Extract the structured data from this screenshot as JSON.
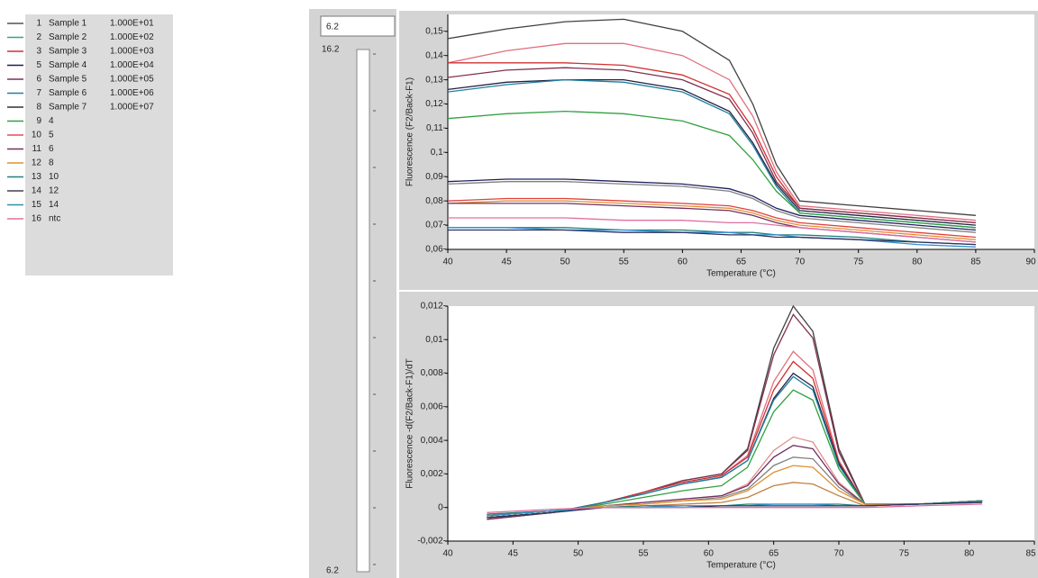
{
  "legend": [
    {
      "num": "1",
      "name": "Sample 1",
      "conc": "1.000E+01",
      "color": "#505050"
    },
    {
      "num": "2",
      "name": "Sample 2",
      "conc": "1.000E+02",
      "color": "#2aa88a"
    },
    {
      "num": "3",
      "name": "Sample 3",
      "conc": "1.000E+03",
      "color": "#d03030"
    },
    {
      "num": "5",
      "name": "Sample 4",
      "conc": "1.000E+04",
      "color": "#202040"
    },
    {
      "num": "6",
      "name": "Sample 5",
      "conc": "1.000E+05",
      "color": "#803050"
    },
    {
      "num": "7",
      "name": "Sample 6",
      "conc": "1.000E+06",
      "color": "#2080a0"
    },
    {
      "num": "8",
      "name": "Sample 7",
      "conc": "1.000E+07",
      "color": "#303030"
    },
    {
      "num": "9",
      "name": "4",
      "conc": "",
      "color": "#30a040"
    },
    {
      "num": "10",
      "name": "5",
      "conc": "",
      "color": "#e05050"
    },
    {
      "num": "11",
      "name": "6",
      "conc": "",
      "color": "#703060"
    },
    {
      "num": "12",
      "name": "8",
      "conc": "",
      "color": "#e09030"
    },
    {
      "num": "13",
      "name": "10",
      "conc": "",
      "color": "#208080"
    },
    {
      "num": "14",
      "name": "12",
      "conc": "",
      "color": "#404050"
    },
    {
      "num": "15",
      "name": "14",
      "conc": "",
      "color": "#3090b0"
    },
    {
      "num": "16",
      "name": "ntc",
      "conc": "",
      "color": "#e070a0"
    }
  ],
  "slider": {
    "input": "6.2",
    "max": "16.2",
    "min": "6.2"
  },
  "chart_data": [
    {
      "type": "line",
      "xlabel": "Temperature (°C)",
      "ylabel": "Fluorescence (F2/Back-F1)",
      "x": [
        40,
        45,
        50,
        55,
        60,
        64,
        66,
        68,
        70,
        75,
        80,
        85
      ],
      "xlim": [
        40,
        90
      ],
      "xticks": [
        40,
        45,
        50,
        55,
        60,
        65,
        70,
        75,
        80,
        85,
        90
      ],
      "ylim": [
        0.06,
        0.157
      ],
      "yticks": [
        {
          "value": 0.06,
          "label": "0,06-"
        },
        {
          "value": 0.07,
          "label": "0,07-"
        },
        {
          "value": 0.08,
          "label": "0,08-"
        },
        {
          "value": 0.09,
          "label": "0,09-"
        },
        {
          "value": 0.1,
          "label": "0,1-"
        },
        {
          "value": 0.11,
          "label": "0,11-"
        },
        {
          "value": 0.12,
          "label": "0,12-"
        },
        {
          "value": 0.13,
          "label": "0,13-"
        },
        {
          "value": 0.14,
          "label": "0,14-"
        },
        {
          "value": 0.15,
          "label": "0,15-"
        }
      ],
      "series": [
        {
          "color": "#404040",
          "values": [
            0.147,
            0.151,
            0.154,
            0.155,
            0.15,
            0.138,
            0.12,
            0.095,
            0.08,
            0.078,
            0.076,
            0.074
          ]
        },
        {
          "color": "#e07080",
          "values": [
            0.137,
            0.142,
            0.145,
            0.145,
            0.14,
            0.13,
            0.115,
            0.092,
            0.078,
            0.076,
            0.074,
            0.072
          ]
        },
        {
          "color": "#d03030",
          "values": [
            0.137,
            0.137,
            0.137,
            0.136,
            0.132,
            0.124,
            0.11,
            0.09,
            0.077,
            0.075,
            0.073,
            0.071
          ]
        },
        {
          "color": "#803050",
          "values": [
            0.131,
            0.134,
            0.135,
            0.134,
            0.13,
            0.122,
            0.108,
            0.088,
            0.077,
            0.075,
            0.073,
            0.071
          ]
        },
        {
          "color": "#202040",
          "values": [
            0.126,
            0.129,
            0.13,
            0.13,
            0.126,
            0.117,
            0.104,
            0.087,
            0.076,
            0.074,
            0.072,
            0.07
          ]
        },
        {
          "color": "#2080a0",
          "values": [
            0.125,
            0.128,
            0.13,
            0.129,
            0.125,
            0.116,
            0.103,
            0.086,
            0.075,
            0.073,
            0.071,
            0.069
          ]
        },
        {
          "color": "#30a040",
          "values": [
            0.114,
            0.116,
            0.117,
            0.116,
            0.113,
            0.107,
            0.097,
            0.084,
            0.075,
            0.073,
            0.071,
            0.069
          ]
        },
        {
          "color": "#202060",
          "values": [
            0.088,
            0.089,
            0.089,
            0.088,
            0.087,
            0.085,
            0.082,
            0.077,
            0.074,
            0.072,
            0.07,
            0.068
          ]
        },
        {
          "color": "#808080",
          "values": [
            0.087,
            0.088,
            0.088,
            0.087,
            0.086,
            0.084,
            0.081,
            0.076,
            0.073,
            0.071,
            0.069,
            0.067
          ]
        },
        {
          "color": "#e04040",
          "values": [
            0.08,
            0.081,
            0.081,
            0.08,
            0.079,
            0.078,
            0.076,
            0.073,
            0.071,
            0.069,
            0.067,
            0.065
          ]
        },
        {
          "color": "#e09030",
          "values": [
            0.079,
            0.08,
            0.08,
            0.079,
            0.078,
            0.077,
            0.075,
            0.072,
            0.07,
            0.068,
            0.066,
            0.064
          ]
        },
        {
          "color": "#703060",
          "values": [
            0.079,
            0.079,
            0.079,
            0.078,
            0.077,
            0.076,
            0.074,
            0.071,
            0.069,
            0.067,
            0.065,
            0.063
          ]
        },
        {
          "color": "#e070a0",
          "values": [
            0.073,
            0.073,
            0.073,
            0.072,
            0.072,
            0.071,
            0.071,
            0.07,
            0.069,
            0.067,
            0.065,
            0.063
          ]
        },
        {
          "color": "#208080",
          "values": [
            0.069,
            0.069,
            0.069,
            0.068,
            0.068,
            0.067,
            0.067,
            0.066,
            0.066,
            0.065,
            0.063,
            0.062
          ]
        },
        {
          "color": "#3090d0",
          "values": [
            0.069,
            0.069,
            0.068,
            0.068,
            0.067,
            0.067,
            0.066,
            0.066,
            0.065,
            0.064,
            0.062,
            0.061
          ]
        },
        {
          "color": "#303060",
          "values": [
            0.068,
            0.068,
            0.068,
            0.067,
            0.067,
            0.066,
            0.066,
            0.065,
            0.065,
            0.064,
            0.063,
            0.062
          ]
        }
      ]
    },
    {
      "type": "line",
      "xlabel": "Temperature (°C)",
      "ylabel": "Fluorescence -d(F2/Back-F1)/dT",
      "x": [
        43,
        48,
        52,
        55,
        58,
        61,
        63,
        65,
        66.5,
        68,
        70,
        72,
        76,
        81
      ],
      "xlim": [
        40,
        85
      ],
      "xticks": [
        40,
        45,
        50,
        55,
        60,
        65,
        70,
        75,
        80,
        85
      ],
      "ylim": [
        -0.002,
        0.012
      ],
      "yticks": [
        {
          "value": -0.002,
          "label": "-0,002-"
        },
        {
          "value": 0,
          "label": "0-"
        },
        {
          "value": 0.002,
          "label": "0,002-"
        },
        {
          "value": 0.004,
          "label": "0,004-"
        },
        {
          "value": 0.006,
          "label": "0,006-"
        },
        {
          "value": 0.008,
          "label": "0,008-"
        },
        {
          "value": 0.01,
          "label": "0,01-"
        },
        {
          "value": 0.012,
          "label": "0,012-"
        }
      ],
      "series": [
        {
          "color": "#404040",
          "values": [
            -0.0007,
            -0.0003,
            0.0003,
            0.0009,
            0.0016,
            0.002,
            0.0035,
            0.0095,
            0.012,
            0.0105,
            0.0035,
            0.0002,
            0.0002,
            0.0004
          ]
        },
        {
          "color": "#803050",
          "values": [
            -0.0007,
            -0.0003,
            0.0003,
            0.0009,
            0.0016,
            0.002,
            0.0034,
            0.0091,
            0.0115,
            0.0101,
            0.0033,
            0.0002,
            0.0002,
            0.0004
          ]
        },
        {
          "color": "#e07080",
          "values": [
            -0.0006,
            -0.0003,
            0.0003,
            0.0009,
            0.0015,
            0.0019,
            0.0031,
            0.0075,
            0.0093,
            0.0082,
            0.0028,
            0.0002,
            0.0002,
            0.0004
          ]
        },
        {
          "color": "#d03030",
          "values": [
            -0.0006,
            -0.0003,
            0.0003,
            0.0009,
            0.0015,
            0.0019,
            0.003,
            0.007,
            0.0087,
            0.0077,
            0.0027,
            0.0002,
            0.0002,
            0.0004
          ]
        },
        {
          "color": "#202040",
          "values": [
            -0.0006,
            -0.0003,
            0.0003,
            0.0008,
            0.0014,
            0.0018,
            0.0028,
            0.0065,
            0.008,
            0.0072,
            0.0026,
            0.0002,
            0.0002,
            0.0004
          ]
        },
        {
          "color": "#2080a0",
          "values": [
            -0.0006,
            -0.0003,
            0.0003,
            0.0008,
            0.0014,
            0.0018,
            0.0028,
            0.0064,
            0.0078,
            0.007,
            0.0025,
            0.0002,
            0.0002,
            0.0004
          ]
        },
        {
          "color": "#30a040",
          "values": [
            -0.0006,
            -0.0003,
            0.0002,
            0.0006,
            0.001,
            0.0013,
            0.0024,
            0.0057,
            0.007,
            0.0064,
            0.0023,
            0.0002,
            0.0002,
            0.0004
          ]
        },
        {
          "color": "#e09090",
          "values": [
            -0.0005,
            -0.0002,
            0.0001,
            0.0003,
            0.0005,
            0.0007,
            0.0014,
            0.0034,
            0.0042,
            0.0039,
            0.0015,
            0.0002,
            0.0002,
            0.0004
          ]
        },
        {
          "color": "#703060",
          "values": [
            -0.0005,
            -0.0002,
            0.0001,
            0.0003,
            0.0005,
            0.0007,
            0.0013,
            0.003,
            0.0037,
            0.0035,
            0.0014,
            0.0002,
            0.0002,
            0.0004
          ]
        },
        {
          "color": "#808080",
          "values": [
            -0.0005,
            -0.0002,
            0.0001,
            0.0002,
            0.0004,
            0.0006,
            0.0011,
            0.0025,
            0.003,
            0.0029,
            0.0012,
            0.0002,
            0.0002,
            0.0004
          ]
        },
        {
          "color": "#e09030",
          "values": [
            -0.0005,
            -0.0002,
            0.0001,
            0.0002,
            0.0004,
            0.0005,
            0.001,
            0.0021,
            0.0025,
            0.0024,
            0.001,
            0.0002,
            0.0002,
            0.0004
          ]
        },
        {
          "color": "#c08040",
          "values": [
            -0.0004,
            -0.0002,
            0,
            0.0001,
            0.0002,
            0.0003,
            0.0006,
            0.0013,
            0.0015,
            0.0014,
            0.0007,
            0.0001,
            0.0002,
            0.0004
          ]
        },
        {
          "color": "#208080",
          "values": [
            -0.0004,
            -0.0002,
            0,
            0.0001,
            0.0001,
            0.0001,
            0.0002,
            0.0002,
            0.0002,
            0.0002,
            0.0002,
            0.0001,
            0.0002,
            0.0004
          ]
        },
        {
          "color": "#3090d0",
          "values": [
            -0.0005,
            -0.0002,
            0,
            0,
            0.0001,
            0.0001,
            0.0001,
            0.0002,
            0.0002,
            0.0002,
            0.0001,
            0.0001,
            0.0002,
            0.0003
          ]
        },
        {
          "color": "#303060",
          "values": [
            -0.0006,
            -0.0003,
            0,
            0,
            0,
            0.0001,
            0.0001,
            0.0001,
            0.0001,
            0.0001,
            0.0001,
            0.0001,
            0.0002,
            0.0003
          ]
        },
        {
          "color": "#e070a0",
          "values": [
            -0.0003,
            -0.0001,
            0,
            0,
            0,
            0,
            0,
            0,
            0,
            0,
            0,
            0,
            0.0001,
            0.0002
          ]
        }
      ]
    }
  ]
}
